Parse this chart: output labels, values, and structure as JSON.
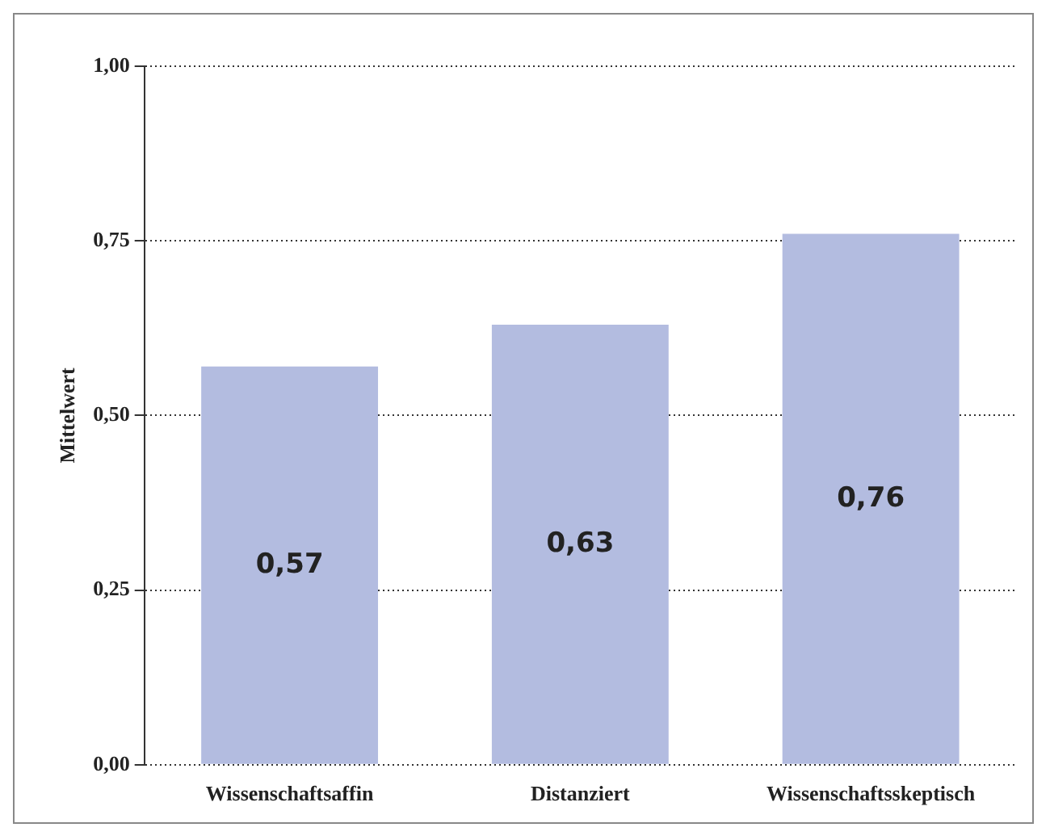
{
  "chart_data": {
    "type": "bar",
    "ylabel": "Mittelwert",
    "categories": [
      "Wissenschaftsaffin",
      "Distanziert",
      "Wissenschaftsskeptisch"
    ],
    "values": [
      0.57,
      0.63,
      0.76
    ],
    "color": "#b3bce0",
    "value_labels": [
      "0,57",
      "0,63",
      "0,76"
    ],
    "ylim": [
      0,
      1
    ],
    "yticks": [
      {
        "value": 0,
        "label": "0,00"
      },
      {
        "value": 0.25,
        "label": "0,25"
      },
      {
        "value": 0.5,
        "label": "0,50"
      },
      {
        "value": 0.75,
        "label": "0,75"
      },
      {
        "value": 1,
        "label": "1,00"
      }
    ],
    "grid": "y",
    "legend": false
  }
}
